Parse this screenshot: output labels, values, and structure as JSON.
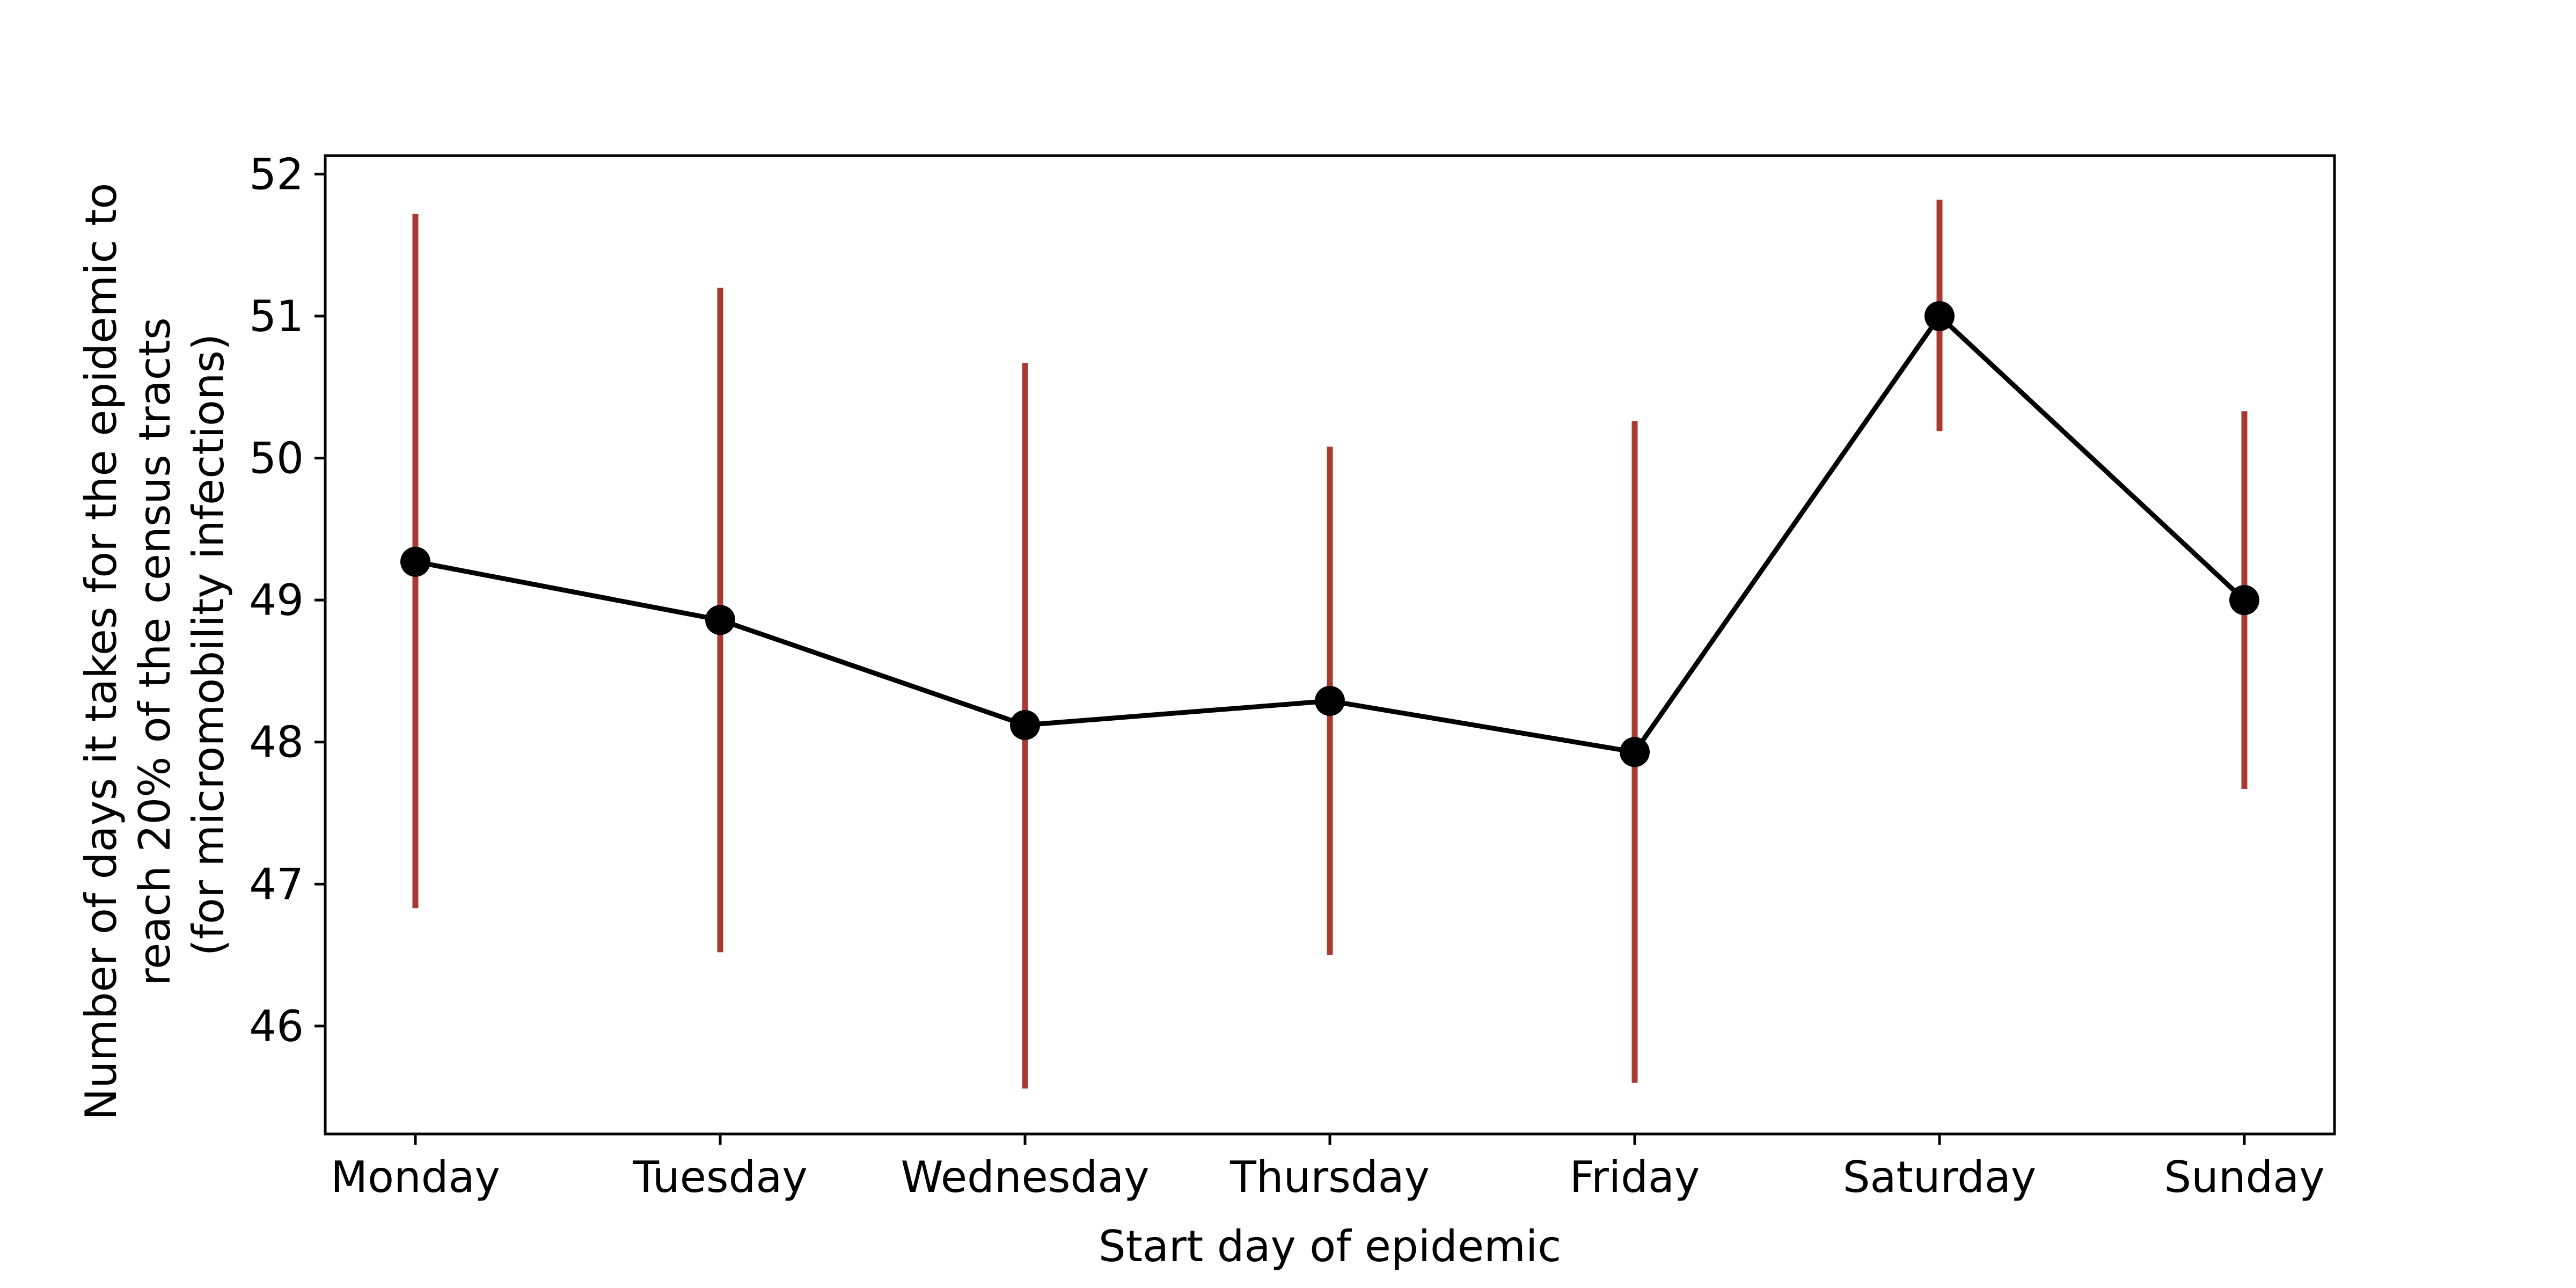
{
  "chart_data": {
    "type": "line",
    "title": "",
    "xlabel": "Start day of epidemic",
    "ylabel_lines": [
      "Number of days it takes for the epidemic to",
      "reach 20% of the census tracts",
      "(for micromobility infections)"
    ],
    "categories": [
      "Monday",
      "Tuesday",
      "Wednesday",
      "Thursday",
      "Friday",
      "Saturday",
      "Sunday"
    ],
    "values": [
      49.27,
      48.86,
      48.12,
      48.29,
      47.93,
      51.0,
      49.0
    ],
    "error_low": [
      46.83,
      46.52,
      45.56,
      46.5,
      45.6,
      50.19,
      47.67
    ],
    "error_high": [
      51.72,
      51.2,
      50.67,
      50.08,
      50.26,
      51.82,
      50.33
    ],
    "ylim": [
      45.24,
      52.13
    ],
    "yticks": [
      46,
      47,
      48,
      49,
      50,
      51,
      52
    ],
    "grid": false,
    "colors": {
      "line": "#000000",
      "marker": "#000000",
      "errorbar": "#a83a32"
    }
  }
}
